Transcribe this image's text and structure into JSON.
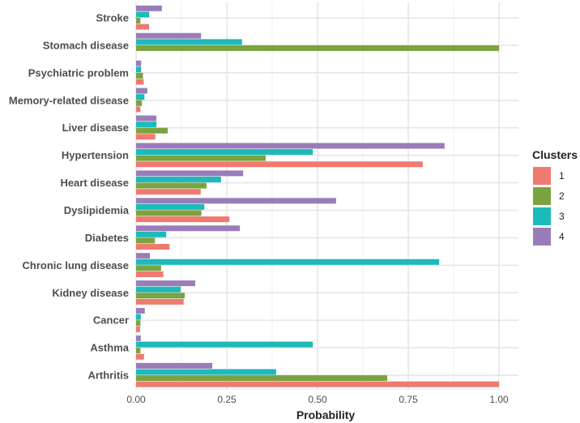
{
  "chart_data": {
    "type": "bar",
    "orientation": "horizontal",
    "title": "",
    "xlabel": "Probability",
    "ylabel": "",
    "xlim": [
      0,
      1
    ],
    "xticks": [
      "0.00",
      "0.25",
      "0.50",
      "0.75",
      "1.00"
    ],
    "xtick_values": [
      0,
      0.25,
      0.5,
      0.75,
      1.0
    ],
    "grid": true,
    "legend": {
      "title": "Clusters",
      "placement": "right"
    },
    "categories": [
      "Stroke",
      "Stomach disease",
      "Psychiatric problem",
      "Memory-related disease",
      "Liver disease",
      "Hypertension",
      "Heart disease",
      "Dyslipidemia",
      "Diabetes",
      "Chronic lung disease",
      "Kidney disease",
      "Cancer",
      "Asthma",
      "Arthritis"
    ],
    "series": [
      {
        "name": "1",
        "color": "#EF7A70",
        "values": [
          0.036,
          0.0,
          0.021,
          0.012,
          0.053,
          0.79,
          0.178,
          0.257,
          0.092,
          0.075,
          0.131,
          0.011,
          0.022,
          1.0
        ]
      },
      {
        "name": "2",
        "color": "#7BA33F",
        "values": [
          0.012,
          1.0,
          0.019,
          0.016,
          0.087,
          0.357,
          0.194,
          0.18,
          0.052,
          0.069,
          0.134,
          0.012,
          0.012,
          0.692
        ]
      },
      {
        "name": "3",
        "color": "#1DBABA",
        "values": [
          0.036,
          0.292,
          0.014,
          0.023,
          0.056,
          0.487,
          0.234,
          0.188,
          0.083,
          0.835,
          0.123,
          0.013,
          0.487,
          0.386
        ]
      },
      {
        "name": "4",
        "color": "#9A7DB8",
        "values": [
          0.071,
          0.179,
          0.014,
          0.031,
          0.056,
          0.85,
          0.295,
          0.551,
          0.286,
          0.038,
          0.163,
          0.024,
          0.013,
          0.21
        ]
      }
    ]
  }
}
